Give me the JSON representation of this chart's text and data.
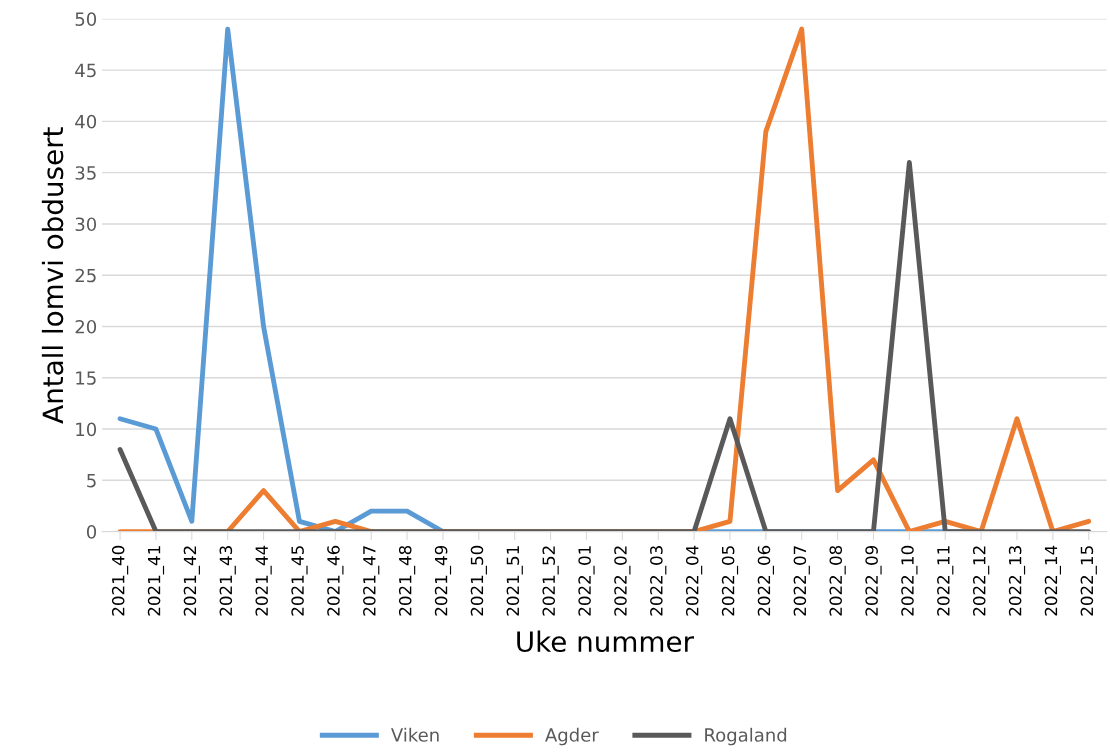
{
  "chart_data": {
    "type": "line",
    "xlabel": "Uke nummer",
    "ylabel": "Antall lomvi obdusert",
    "categories": [
      "2021_40",
      "2021_41",
      "2021_42",
      "2021_43",
      "2021_44",
      "2021_45",
      "2021_46",
      "2021_47",
      "2021_48",
      "2021_49",
      "2021_50",
      "2021_51",
      "2021_52",
      "2022_01",
      "2022_02",
      "2022_03",
      "2022_04",
      "2022_05",
      "2022_06",
      "2022_07",
      "2022_08",
      "2022_09",
      "2022_10",
      "2022_11",
      "2022_12",
      "2022_13",
      "2022_14",
      "2022_15"
    ],
    "series": [
      {
        "name": "Viken",
        "color": "#5b9bd5",
        "values": [
          11,
          10,
          1,
          49,
          20,
          1,
          0,
          2,
          2,
          0,
          0,
          0,
          0,
          0,
          0,
          0,
          0,
          0,
          0,
          0,
          0,
          0,
          0,
          0,
          0,
          null,
          null,
          null
        ]
      },
      {
        "name": "Agder",
        "color": "#ed7d31",
        "values": [
          0,
          0,
          0,
          0,
          4,
          0,
          1,
          0,
          0,
          0,
          0,
          0,
          0,
          0,
          0,
          0,
          0,
          1,
          39,
          49,
          4,
          7,
          0,
          1,
          0,
          11,
          0,
          1
        ]
      },
      {
        "name": "Rogaland",
        "color": "#595959",
        "values": [
          8,
          0,
          0,
          0,
          0,
          0,
          0,
          0,
          0,
          0,
          0,
          0,
          0,
          0,
          0,
          0,
          0,
          11,
          0,
          0,
          0,
          0,
          36,
          0,
          0,
          0,
          0,
          0
        ]
      }
    ],
    "ylim": [
      0,
      50
    ],
    "yticks": [
      0,
      5,
      10,
      15,
      20,
      25,
      30,
      35,
      40,
      45,
      50
    ],
    "grid": "y",
    "legend": "bottom",
    "marker": "none",
    "line_style": "solid"
  }
}
